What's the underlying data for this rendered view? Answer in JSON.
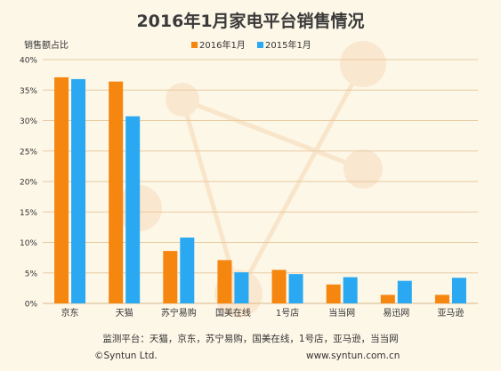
{
  "chart_data": {
    "type": "bar",
    "title": "2016年1月家电平台销售情况",
    "ylabel": "销售额占比",
    "categories": [
      "京东",
      "天猫",
      "苏宁易购",
      "国美在线",
      "1号店",
      "当当网",
      "易迅网",
      "亚马逊"
    ],
    "series": [
      {
        "name": "2016年1月",
        "color": "#f5860f",
        "values": [
          37.1,
          36.4,
          8.6,
          7.1,
          5.5,
          3.1,
          1.4,
          1.4
        ]
      },
      {
        "name": "2015年1月",
        "color": "#2aa9f2",
        "values": [
          36.8,
          30.7,
          10.8,
          5.1,
          4.8,
          4.3,
          3.7,
          4.2
        ]
      }
    ],
    "ylim": [
      0,
      40
    ],
    "yticks": [
      "0%",
      "5%",
      "10%",
      "15%",
      "20%",
      "25%",
      "30%",
      "35%",
      "40%"
    ],
    "grid": true,
    "legend_position": "top-center"
  },
  "footer": {
    "platforms": "监测平台：天猫，京东，苏宁易购，国美在线，1号店，亚马逊，当当网",
    "copyright": "©Syntun Ltd.",
    "website": "www.syntun.com.cn"
  }
}
